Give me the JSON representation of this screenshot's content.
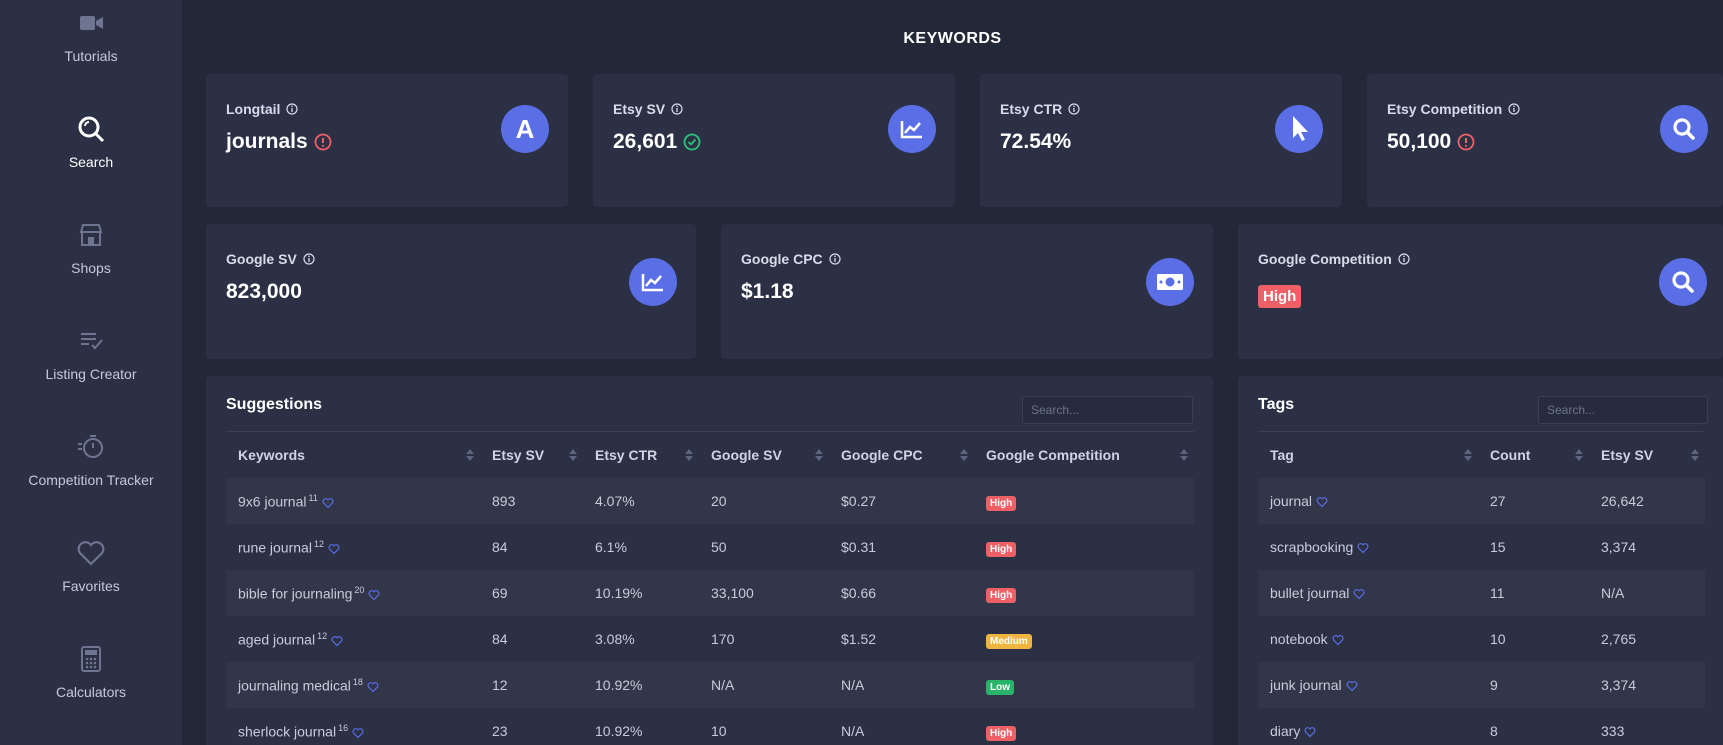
{
  "sidebar": {
    "items": [
      {
        "label": "Tutorials",
        "icon": "video-camera-icon"
      },
      {
        "label": "Search",
        "icon": "search-icon",
        "active": true
      },
      {
        "label": "Shops",
        "icon": "store-icon"
      },
      {
        "label": "Listing Creator",
        "icon": "list-check-icon"
      },
      {
        "label": "Competition Tracker",
        "icon": "stopwatch-icon"
      },
      {
        "label": "Favorites",
        "icon": "heart-icon"
      },
      {
        "label": "Calculators",
        "icon": "calculator-icon"
      }
    ]
  },
  "page_title": "KEYWORDS",
  "stats": {
    "longtail": {
      "label": "Longtail",
      "value": "journals",
      "status": "warning",
      "icon": "letter-a-icon"
    },
    "etsy_sv": {
      "label": "Etsy SV",
      "value": "26,601",
      "status": "ok",
      "icon": "chart-up-icon"
    },
    "etsy_ctr": {
      "label": "Etsy CTR",
      "value": "72.54%",
      "icon": "cursor-icon"
    },
    "etsy_competition": {
      "label": "Etsy Competition",
      "value": "50,100",
      "status": "warning",
      "icon": "search-icon"
    },
    "google_sv": {
      "label": "Google SV",
      "value": "823,000",
      "icon": "chart-up-icon"
    },
    "google_cpc": {
      "label": "Google CPC",
      "value": "$1.18",
      "icon": "money-bill-icon"
    },
    "google_competition": {
      "label": "Google Competition",
      "value": "High",
      "icon": "search-icon"
    }
  },
  "suggestions": {
    "title": "Suggestions",
    "search_placeholder": "Search...",
    "columns": [
      "Keywords",
      "Etsy SV",
      "Etsy CTR",
      "Google SV",
      "Google CPC",
      "Google Competition"
    ],
    "rows": [
      {
        "keyword": "9x6 journal",
        "count": "11",
        "etsy_sv": "893",
        "etsy_ctr": "4.07%",
        "google_sv": "20",
        "google_cpc": "$0.27",
        "competition": "High"
      },
      {
        "keyword": "rune journal",
        "count": "12",
        "etsy_sv": "84",
        "etsy_ctr": "6.1%",
        "google_sv": "50",
        "google_cpc": "$0.31",
        "competition": "High"
      },
      {
        "keyword": "bible for journaling",
        "count": "20",
        "etsy_sv": "69",
        "etsy_ctr": "10.19%",
        "google_sv": "33,100",
        "google_cpc": "$0.66",
        "competition": "High"
      },
      {
        "keyword": "aged journal",
        "count": "12",
        "etsy_sv": "84",
        "etsy_ctr": "3.08%",
        "google_sv": "170",
        "google_cpc": "$1.52",
        "competition": "Medium"
      },
      {
        "keyword": "journaling medical",
        "count": "18",
        "etsy_sv": "12",
        "etsy_ctr": "10.92%",
        "google_sv": "N/A",
        "google_cpc": "N/A",
        "competition": "Low"
      },
      {
        "keyword": "sherlock journal",
        "count": "16",
        "etsy_sv": "23",
        "etsy_ctr": "10.92%",
        "google_sv": "10",
        "google_cpc": "N/A",
        "competition": "High"
      }
    ]
  },
  "tags": {
    "title": "Tags",
    "search_placeholder": "Search...",
    "columns": [
      "Tag",
      "Count",
      "Etsy SV"
    ],
    "rows": [
      {
        "tag": "journal",
        "count": "27",
        "etsy_sv": "26,642"
      },
      {
        "tag": "scrapbooking",
        "count": "15",
        "etsy_sv": "3,374"
      },
      {
        "tag": "bullet journal",
        "count": "11",
        "etsy_sv": "N/A"
      },
      {
        "tag": "notebook",
        "count": "10",
        "etsy_sv": "2,765"
      },
      {
        "tag": "junk journal",
        "count": "9",
        "etsy_sv": "3,374"
      },
      {
        "tag": "diary",
        "count": "8",
        "etsy_sv": "333"
      }
    ]
  },
  "colors": {
    "high": "#ef5f66",
    "medium": "#f0b53f",
    "low": "#29b36b",
    "accent": "#5a6ee6",
    "ok": "#2bc27a",
    "warning": "#ef5f66"
  }
}
